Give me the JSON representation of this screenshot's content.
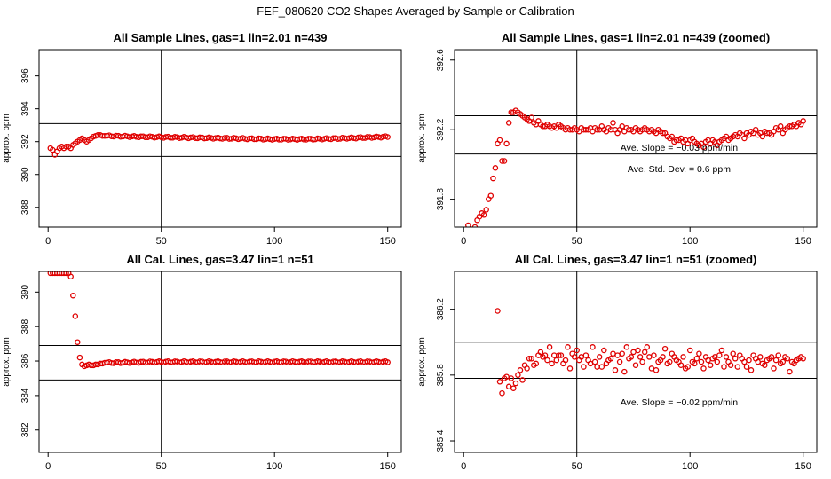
{
  "figure": {
    "title": "FEF_080620  CO2 Shapes Averaged by Sample or Calibration"
  },
  "style": {
    "point_color": "#e00000",
    "line_color": "#000000"
  },
  "chart_data": [
    {
      "type": "scatter",
      "title": "All Sample Lines, gas=1 lin=2.01 n=439",
      "ylabel": "approx. ppm",
      "xlim": [
        -4,
        156
      ],
      "ylim": [
        386.8,
        397.6
      ],
      "xticks": [
        0,
        50,
        100,
        150
      ],
      "yticks": [
        388,
        390,
        392,
        394,
        396
      ],
      "vline": 50,
      "hlines": [
        391.1,
        393.1
      ],
      "series": [
        {
          "kind": "segments",
          "segments": [
            {
              "x": [
                1,
                2,
                3,
                4,
                5,
                6,
                7,
                8,
                9,
                10,
                11,
                12,
                13,
                14,
                15,
                16,
                17,
                18,
                19,
                20,
                21,
                22,
                23,
                24,
                25
              ],
              "y": [
                391.6,
                391.5,
                391.2,
                391.4,
                391.6,
                391.7,
                391.6,
                391.7,
                391.7,
                391.6,
                391.8,
                391.9,
                392.0,
                392.1,
                392.2,
                392.1,
                392.0,
                392.1,
                392.2,
                392.3,
                392.35,
                392.4,
                392.4,
                392.35,
                392.35
              ]
            },
            {
              "x0": 26,
              "x1": 150,
              "step": 1,
              "y_pts": [
                [
                  26,
                  392.35
                ],
                [
                  40,
                  392.3
                ],
                [
                  60,
                  392.25
                ],
                [
                  80,
                  392.2
                ],
                [
                  100,
                  392.15
                ],
                [
                  115,
                  392.15
                ],
                [
                  130,
                  392.2
                ],
                [
                  150,
                  392.3
                ]
              ]
            }
          ]
        }
      ],
      "annotations": []
    },
    {
      "type": "scatter",
      "title": "All Sample Lines, gas=1 lin=2.01 n=439 (zoomed)",
      "ylabel": "approx. ppm",
      "xlim": [
        -4,
        156
      ],
      "ylim": [
        391.64,
        392.66
      ],
      "xticks": [
        0,
        50,
        100,
        150
      ],
      "yticks": [
        391.8,
        392.2,
        392.6
      ],
      "vline": 50,
      "hlines": [
        392.06,
        392.28
      ],
      "series": [
        {
          "kind": "points",
          "x": [
            2,
            3,
            4,
            5,
            6,
            7,
            8,
            9,
            10,
            11,
            12,
            13,
            14,
            15,
            16,
            17,
            18,
            19,
            20,
            21,
            22,
            23,
            24,
            25,
            26,
            27,
            28,
            29,
            30,
            31,
            32,
            33,
            34,
            35,
            36,
            37,
            38,
            39,
            40,
            41,
            42,
            43,
            44,
            45,
            46,
            47,
            48,
            49,
            50,
            51,
            52,
            53,
            54,
            55,
            56,
            57,
            58,
            59,
            60,
            61,
            62,
            63,
            64,
            65,
            66,
            67,
            68,
            69,
            70,
            71,
            72,
            73,
            74,
            75,
            76,
            77,
            78,
            79,
            80,
            81,
            82,
            83,
            84,
            85,
            86,
            87,
            88,
            89,
            90,
            91,
            92,
            93,
            94,
            95,
            96,
            97,
            98,
            99,
            100,
            101,
            102,
            103,
            104,
            105,
            106,
            107,
            108,
            109,
            110,
            111,
            112,
            113,
            114,
            115,
            116,
            117,
            118,
            119,
            120,
            121,
            122,
            123,
            124,
            125,
            126,
            127,
            128,
            129,
            130,
            131,
            132,
            133,
            134,
            135,
            136,
            137,
            138,
            139,
            140,
            141,
            142,
            143,
            144,
            145,
            146,
            147,
            148,
            149,
            150
          ],
          "y": [
            391.65,
            391.62,
            391.6,
            391.64,
            391.68,
            391.7,
            391.72,
            391.71,
            391.74,
            391.8,
            391.82,
            391.92,
            391.98,
            392.12,
            392.14,
            392.02,
            392.02,
            392.12,
            392.24,
            392.3,
            392.3,
            392.31,
            392.3,
            392.29,
            392.28,
            392.27,
            392.26,
            392.25,
            392.27,
            392.24,
            392.23,
            392.25,
            392.23,
            392.22,
            392.22,
            392.23,
            392.22,
            392.21,
            392.22,
            392.21,
            392.23,
            392.22,
            392.21,
            392.2,
            392.21,
            392.2,
            392.2,
            392.21,
            392.2,
            392.19,
            392.21,
            392.2,
            392.2,
            392.2,
            392.21,
            392.19,
            392.21,
            392.2,
            392.2,
            392.22,
            392.2,
            392.19,
            392.21,
            392.2,
            392.24,
            392.2,
            392.18,
            392.2,
            392.22,
            392.19,
            392.21,
            392.2,
            392.2,
            392.19,
            392.21,
            392.2,
            392.19,
            392.2,
            392.21,
            392.2,
            392.19,
            392.2,
            392.19,
            392.18,
            392.2,
            392.19,
            392.18,
            392.18,
            392.16,
            392.15,
            392.16,
            392.13,
            392.14,
            392.14,
            392.15,
            392.13,
            392.14,
            392.12,
            392.14,
            392.15,
            392.13,
            392.12,
            392.11,
            392.12,
            392.1,
            392.13,
            392.14,
            392.12,
            392.14,
            392.13,
            392.11,
            392.13,
            392.14,
            392.15,
            392.16,
            392.14,
            392.15,
            392.16,
            392.17,
            392.16,
            392.18,
            392.17,
            392.15,
            392.18,
            392.17,
            392.19,
            392.18,
            392.2,
            392.17,
            392.18,
            392.16,
            392.19,
            392.18,
            392.18,
            392.17,
            392.19,
            392.21,
            392.2,
            392.22,
            392.18,
            392.2,
            392.21,
            392.22,
            392.22,
            392.23,
            392.22,
            392.24,
            392.23,
            392.25
          ]
        }
      ],
      "annotations": [
        "Ave. Slope =  −0.03  ppm/min",
        "Ave. Std. Dev. =  0.6  ppm"
      ]
    },
    {
      "type": "scatter",
      "title": "All Cal. Lines, gas=3.47 lin=1 n=51",
      "ylabel": "approx. ppm",
      "xlim": [
        -4,
        156
      ],
      "ylim": [
        380.7,
        391.2
      ],
      "xticks": [
        0,
        50,
        100,
        150
      ],
      "yticks": [
        382,
        384,
        386,
        388,
        390
      ],
      "vline": 50,
      "hlines": [
        384.9,
        386.9
      ],
      "series": [
        {
          "kind": "segments",
          "segments": [
            {
              "x": [
                1,
                2,
                3,
                4,
                5,
                6,
                7,
                8,
                9,
                10,
                11,
                12,
                13,
                14,
                15,
                16,
                17,
                18,
                19,
                20,
                21,
                22,
                23,
                24,
                25
              ],
              "y": [
                391.1,
                391.1,
                391.1,
                391.1,
                391.1,
                391.1,
                391.1,
                391.1,
                391.1,
                390.9,
                389.8,
                388.6,
                387.1,
                386.2,
                385.8,
                385.7,
                385.75,
                385.8,
                385.75,
                385.75,
                385.8,
                385.8,
                385.85,
                385.85,
                385.9
              ]
            },
            {
              "x0": 26,
              "x1": 150,
              "step": 1,
              "y_pts": [
                [
                  26,
                  385.9
                ],
                [
                  50,
                  385.95
                ],
                [
                  100,
                  385.95
                ],
                [
                  150,
                  385.95
                ]
              ]
            }
          ]
        }
      ],
      "annotations": []
    },
    {
      "type": "scatter",
      "title": "All Cal. Lines, gas=3.47 lin=1 n=51 (zoomed)",
      "ylabel": "approx. ppm",
      "xlim": [
        -4,
        156
      ],
      "ylim": [
        385.33,
        386.43
      ],
      "xticks": [
        0,
        50,
        100,
        150
      ],
      "yticks": [
        385.4,
        385.8,
        386.2
      ],
      "vline": 50,
      "hlines": [
        385.78,
        386.0
      ],
      "series": [
        {
          "kind": "points",
          "x": [
            15,
            16,
            17,
            18,
            19,
            20,
            21,
            22,
            23,
            24,
            25,
            26,
            27,
            28,
            29,
            30,
            31,
            32,
            33,
            34,
            35,
            36,
            37,
            38,
            39,
            40,
            41,
            42,
            43,
            44,
            45,
            46,
            47,
            48,
            49,
            50,
            51,
            52,
            53,
            54,
            55,
            56,
            57,
            58,
            59,
            60,
            61,
            62,
            63,
            64,
            65,
            66,
            67,
            68,
            69,
            70,
            71,
            72,
            73,
            74,
            75,
            76,
            77,
            78,
            79,
            80,
            81,
            82,
            83,
            84,
            85,
            86,
            87,
            88,
            89,
            90,
            91,
            92,
            93,
            94,
            95,
            96,
            97,
            98,
            99,
            100,
            101,
            102,
            103,
            104,
            105,
            106,
            107,
            108,
            109,
            110,
            111,
            112,
            113,
            114,
            115,
            116,
            117,
            118,
            119,
            120,
            121,
            122,
            123,
            124,
            125,
            126,
            127,
            128,
            129,
            130,
            131,
            132,
            133,
            134,
            135,
            136,
            137,
            138,
            139,
            140,
            141,
            142,
            143,
            144,
            145,
            146,
            147,
            148,
            149,
            150
          ],
          "y": [
            386.19,
            385.76,
            385.69,
            385.78,
            385.79,
            385.73,
            385.78,
            385.72,
            385.75,
            385.8,
            385.83,
            385.77,
            385.86,
            385.84,
            385.9,
            385.9,
            385.86,
            385.87,
            385.92,
            385.94,
            385.91,
            385.92,
            385.89,
            385.97,
            385.87,
            385.92,
            385.89,
            385.92,
            385.92,
            385.87,
            385.89,
            385.97,
            385.84,
            385.93,
            385.91,
            385.95,
            385.89,
            385.91,
            385.85,
            385.92,
            385.89,
            385.87,
            385.97,
            385.88,
            385.85,
            385.91,
            385.85,
            385.95,
            385.87,
            385.89,
            385.9,
            385.93,
            385.83,
            385.92,
            385.88,
            385.93,
            385.82,
            385.97,
            385.9,
            385.91,
            385.94,
            385.86,
            385.95,
            385.91,
            385.88,
            385.94,
            385.97,
            385.91,
            385.84,
            385.92,
            385.83,
            385.88,
            385.89,
            385.91,
            385.96,
            385.87,
            385.88,
            385.93,
            385.91,
            385.89,
            385.88,
            385.86,
            385.91,
            385.84,
            385.85,
            385.95,
            385.88,
            385.87,
            385.9,
            385.93,
            385.88,
            385.84,
            385.91,
            385.89,
            385.86,
            385.9,
            385.91,
            385.88,
            385.92,
            385.95,
            385.85,
            385.91,
            385.88,
            385.86,
            385.93,
            385.9,
            385.85,
            385.92,
            385.9,
            385.88,
            385.85,
            385.89,
            385.83,
            385.92,
            385.9,
            385.88,
            385.91,
            385.87,
            385.86,
            385.89,
            385.9,
            385.91,
            385.84,
            385.89,
            385.92,
            385.87,
            385.88,
            385.91,
            385.9,
            385.82,
            385.88,
            385.87,
            385.89,
            385.9,
            385.91,
            385.9
          ]
        }
      ],
      "annotations": [
        "Ave. Slope =  −0.02  ppm/min"
      ]
    }
  ]
}
